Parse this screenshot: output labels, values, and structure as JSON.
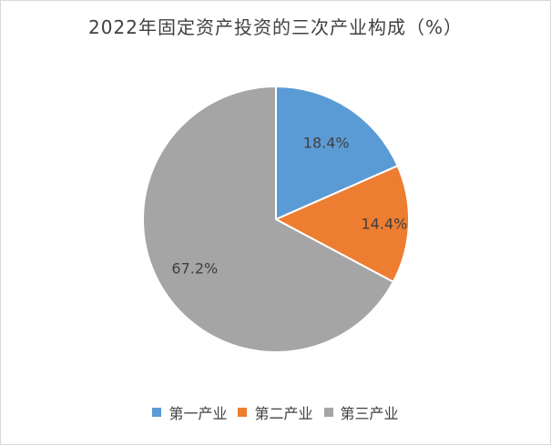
{
  "chart_data": {
    "type": "pie",
    "title": "2022年固定资产投资的三次产业构成（%）",
    "slices": [
      {
        "name": "第一产业",
        "value": 18.4,
        "label": "18.4%",
        "color": "#5b9bd5"
      },
      {
        "name": "第二产业",
        "value": 14.4,
        "label": "14.4%",
        "color": "#ed7d31"
      },
      {
        "name": "第三产业",
        "value": 67.2,
        "label": "67.2%",
        "color": "#a5a5a5"
      }
    ],
    "start": "12 o'clock",
    "direction": "clockwise",
    "legend": {
      "position": "bottom"
    }
  }
}
